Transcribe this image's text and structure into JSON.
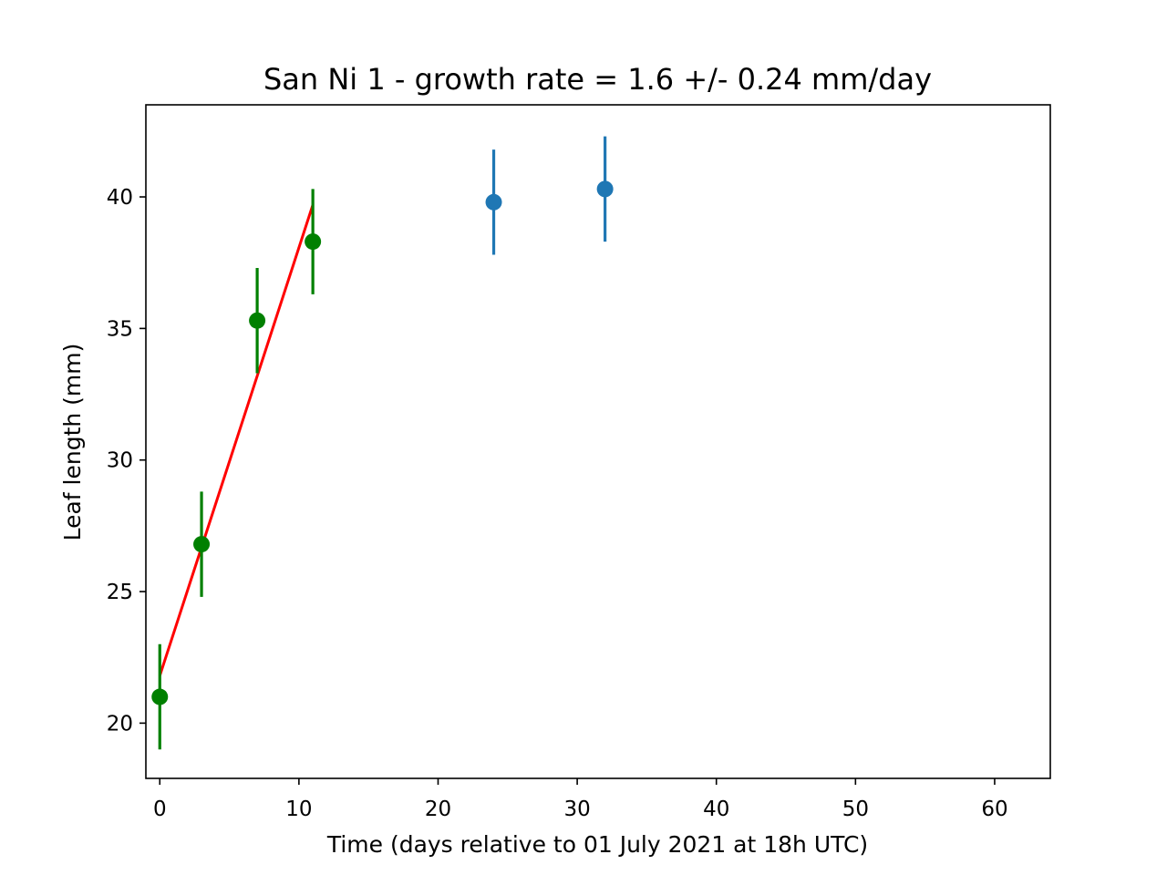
{
  "chart_data": {
    "type": "scatter",
    "title": "San Ni 1  -  growth rate =  1.6 +/- 0.24 mm/day",
    "xlabel": "Time (days relative to 01 July 2021 at 18h UTC)",
    "ylabel": "Leaf length (mm)",
    "xlim": [
      -1,
      64
    ],
    "ylim": [
      17.9,
      43.5
    ],
    "x_ticks": [
      0,
      10,
      20,
      30,
      40,
      50,
      60
    ],
    "y_ticks": [
      20,
      25,
      30,
      35,
      40
    ],
    "grid": false,
    "series": [
      {
        "color": "#008000",
        "marker": "circle",
        "points": [
          {
            "x": 0,
            "y": 21.0,
            "yerr": 2.0
          },
          {
            "x": 3,
            "y": 26.8,
            "yerr": 2.0
          },
          {
            "x": 7,
            "y": 35.3,
            "yerr": 2.0
          },
          {
            "x": 11,
            "y": 38.3,
            "yerr": 2.0
          }
        ]
      },
      {
        "color": "#1f77b4",
        "marker": "circle",
        "points": [
          {
            "x": 24,
            "y": 39.8,
            "yerr": 2.0
          },
          {
            "x": 32,
            "y": 40.3,
            "yerr": 2.0
          }
        ]
      }
    ],
    "fit_line": {
      "color": "#ff0000",
      "x": [
        0,
        11
      ],
      "y": [
        21.8,
        39.7
      ]
    }
  }
}
